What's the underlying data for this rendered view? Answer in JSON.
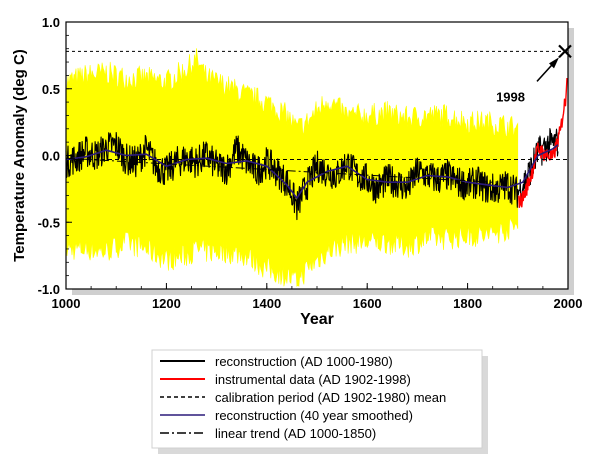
{
  "chart_data": {
    "type": "line",
    "xlabel": "Year",
    "ylabel": "Temperature Anomaly (deg C)",
    "xlim": [
      1000,
      2000
    ],
    "ylim": [
      -1.0,
      1.0
    ],
    "x_ticks": [
      1000,
      1200,
      1400,
      1600,
      1800,
      2000
    ],
    "y_ticks": [
      -1.0,
      -0.5,
      0.0,
      0.5,
      1.0
    ],
    "y_tick_labels": [
      "-1.0",
      "-0.5",
      "0.0",
      "0.5",
      "1.0"
    ],
    "grid": false,
    "legend_placement": "bottom-center",
    "colors": {
      "uncertainty": "#ffff00",
      "reconstruction": "#000000",
      "instrumental": "#ff0000",
      "smoothed": "#2b1a7a",
      "calibration_mean": "#000000",
      "trend": "#000000"
    },
    "series": [
      {
        "name": "reconstruction (AD 1000-1980)",
        "style": "solid",
        "x": [
          1000,
          1020,
          1040,
          1060,
          1080,
          1100,
          1120,
          1140,
          1160,
          1180,
          1200,
          1220,
          1240,
          1260,
          1280,
          1300,
          1320,
          1340,
          1360,
          1380,
          1400,
          1420,
          1440,
          1460,
          1480,
          1500,
          1520,
          1540,
          1560,
          1580,
          1600,
          1620,
          1640,
          1660,
          1680,
          1700,
          1720,
          1740,
          1760,
          1780,
          1800,
          1820,
          1840,
          1860,
          1880,
          1900,
          1920,
          1940,
          1960,
          1980
        ],
        "values": [
          -0.05,
          -0.02,
          0.03,
          0.0,
          0.06,
          0.08,
          -0.03,
          -0.05,
          0.05,
          -0.08,
          -0.12,
          -0.05,
          -0.02,
          -0.05,
          0.0,
          -0.08,
          -0.1,
          0.05,
          -0.05,
          -0.12,
          -0.05,
          -0.12,
          -0.2,
          -0.38,
          -0.22,
          -0.08,
          -0.12,
          -0.15,
          -0.05,
          -0.15,
          -0.18,
          -0.25,
          -0.18,
          -0.2,
          -0.25,
          -0.12,
          -0.15,
          -0.18,
          -0.15,
          -0.2,
          -0.22,
          -0.2,
          -0.25,
          -0.25,
          -0.22,
          -0.28,
          -0.15,
          0.02,
          0.08,
          0.1
        ]
      },
      {
        "name": "instrumental data (AD 1902-1998)",
        "style": "solid",
        "x": [
          1902,
          1910,
          1920,
          1930,
          1940,
          1950,
          1960,
          1970,
          1980,
          1985,
          1990,
          1995,
          1998
        ],
        "values": [
          -0.35,
          -0.32,
          -0.22,
          -0.1,
          0.05,
          0.02,
          0.0,
          -0.02,
          0.12,
          0.18,
          0.32,
          0.42,
          0.62
        ]
      },
      {
        "name": "calibration period (AD 1902-1980) mean",
        "style": "dashed",
        "x": [
          1000,
          2000
        ],
        "values": [
          -0.03,
          -0.03
        ]
      },
      {
        "name": "reconstruction (40 year smoothed)",
        "style": "solid",
        "x": [
          1000,
          1040,
          1080,
          1120,
          1160,
          1200,
          1240,
          1280,
          1320,
          1360,
          1400,
          1440,
          1460,
          1480,
          1520,
          1560,
          1600,
          1640,
          1680,
          1720,
          1760,
          1800,
          1840,
          1880,
          1910,
          1940,
          1970,
          1980
        ],
        "values": [
          -0.03,
          -0.01,
          0.04,
          0.0,
          0.01,
          -0.08,
          -0.03,
          -0.02,
          -0.06,
          -0.04,
          -0.08,
          -0.22,
          -0.32,
          -0.2,
          -0.12,
          -0.08,
          -0.18,
          -0.2,
          -0.2,
          -0.15,
          -0.16,
          -0.2,
          -0.22,
          -0.24,
          -0.2,
          0.0,
          0.05,
          0.08
        ]
      },
      {
        "name": "linear trend (AD 1000-1850)",
        "style": "dashdot",
        "x": [
          1000,
          1850
        ],
        "values": [
          -0.02,
          -0.2
        ]
      }
    ],
    "uncertainty_band": {
      "x": [
        1000,
        1040,
        1080,
        1120,
        1160,
        1200,
        1240,
        1260,
        1280,
        1320,
        1360,
        1400,
        1440,
        1460,
        1480,
        1520,
        1560,
        1600,
        1640,
        1680,
        1720,
        1760,
        1800,
        1840,
        1880,
        1900
      ],
      "upper": [
        0.55,
        0.6,
        0.62,
        0.58,
        0.58,
        0.55,
        0.65,
        0.72,
        0.58,
        0.52,
        0.45,
        0.4,
        0.3,
        0.2,
        0.25,
        0.42,
        0.3,
        0.3,
        0.32,
        0.28,
        0.3,
        0.3,
        0.25,
        0.25,
        0.22,
        0.2
      ],
      "lower": [
        -0.7,
        -0.7,
        -0.72,
        -0.65,
        -0.7,
        -0.78,
        -0.75,
        -0.7,
        -0.72,
        -0.72,
        -0.75,
        -0.85,
        -0.9,
        -0.95,
        -0.85,
        -0.72,
        -0.65,
        -0.65,
        -0.65,
        -0.68,
        -0.62,
        -0.62,
        -0.6,
        -0.6,
        -0.55,
        -0.52
      ]
    },
    "reference_line": {
      "value": 0.78,
      "style": "dashed"
    },
    "annotations": [
      {
        "text": "1998",
        "x": 1998,
        "y": 0.78,
        "marker": "x"
      }
    ]
  }
}
